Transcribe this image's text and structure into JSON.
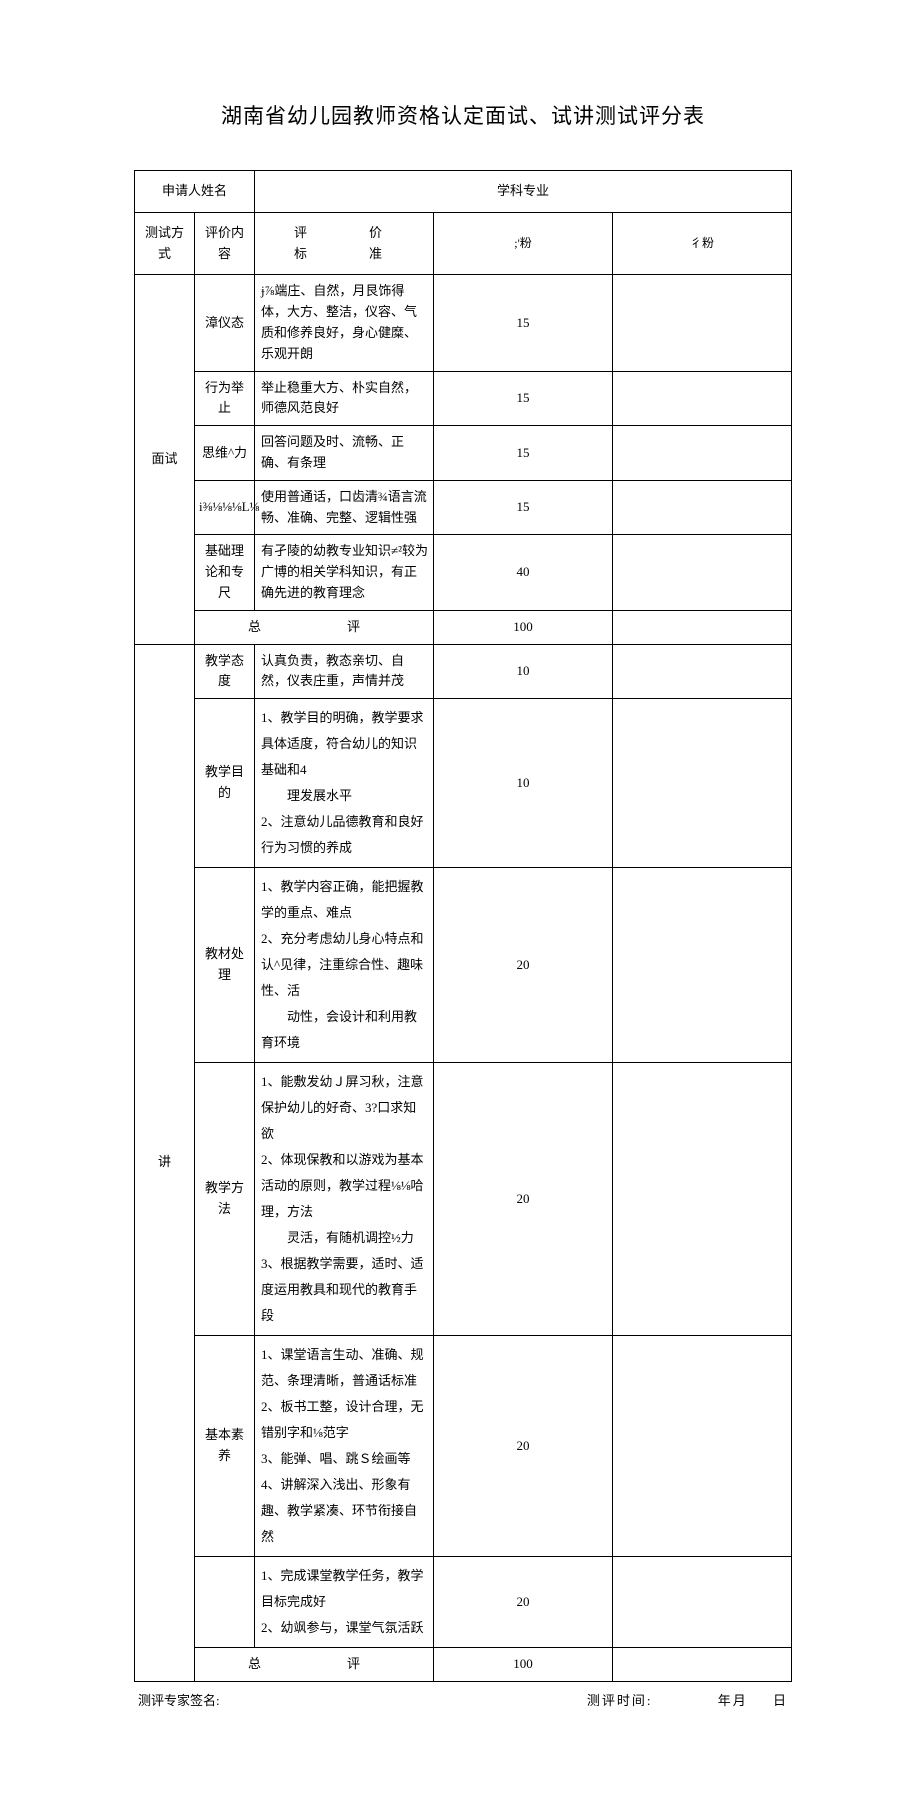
{
  "title": "湖南省幼儿园教师资格认定面试、试讲测试评分表",
  "header": {
    "applicant_name_label": "申请人姓名",
    "subject_label": "学科专业"
  },
  "columns": {
    "method": "测试方式",
    "content": "评价内容",
    "criteria": "评　　价　　标　　准",
    "score": ";'粉",
    "actual": "彳粉"
  },
  "interview": {
    "label": "面试",
    "rows": [
      {
        "content": "漳仪态",
        "criteria": "ɉ⅞端庄、自然，月艮饰得体，大方、整洁，仪容、气质和修养良好，身心健糜、乐观开朗",
        "score": "15"
      },
      {
        "content": "行为举止",
        "criteria": "举止稳重大方、朴实自然，师德风范良好",
        "score": "15"
      },
      {
        "content": "思维^力",
        "criteria": "回答问题及时、流畅、正确、有条理",
        "score": "15"
      },
      {
        "content": "i⅜⅛⅛⅛L⅛",
        "criteria": "使用普通话，口齿清¾语言流畅、准确、完整、逻辑性强",
        "score": "15"
      },
      {
        "content": "基础理论和专尺",
        "criteria": "有孑陵的幼教专业知识≠²较为广博的相关学科知识，有正确先进的教育理念",
        "score": "40"
      }
    ],
    "total_label": "总　　评",
    "total_score": "100"
  },
  "lecture": {
    "label": "讲",
    "rows": [
      {
        "content": "教学态度",
        "criteria": "认真负责，教态亲切、自然，仪表庄重，声情并茂",
        "score": "10"
      },
      {
        "content": "教学目的",
        "criteria": "1、教学目的明确，教学要求具体适度，符合幼儿的知识基础和4\n　　理发展水平\n2、注意幼儿品德教育和良好行为习惯的养成",
        "score": "10"
      },
      {
        "content": "教材处理",
        "criteria": "1、教学内容正确，能把握教学的重点、难点\n2、充分考虑幼儿身心特点和认^见律，注重综合性、趣味性、活\n　　动性，会设计和利用教育环境",
        "score": "20"
      },
      {
        "content": "教学方法",
        "criteria": "1、能敷发幼Ｊ屏习秋，注意保护幼儿的好奇、3?口求知欲\n2、体现保教和以游戏为基本活动的原则，教学过程⅛⅛哈理，方法\n　　灵活，有随机调控½力\n3、根据教学需要，适时、适度运用教具和现代的教育手段",
        "score": "20"
      },
      {
        "content": "基本素养",
        "criteria": "1、课堂语言生动、准确、规范、条理清晰，普通话标准\n2、板书工整，设计合理，无错别字和⅛范字\n3、能弹、唱、跳Ｓ绘画等\n4、讲解深入浅出、形象有趣、教学紧凑、环节衔接自然",
        "score": "20"
      },
      {
        "content": "",
        "criteria": "1、完成课堂教学任务，教学目标完成好\n2、幼飒参与，课堂气氛活跃",
        "score": "20"
      }
    ],
    "total_label": "总　　评",
    "total_score": "100"
  },
  "footer": {
    "signature_label": "测评专家签名:",
    "time_label": "测评时间:",
    "year": "年",
    "month": "月",
    "day": "日"
  }
}
